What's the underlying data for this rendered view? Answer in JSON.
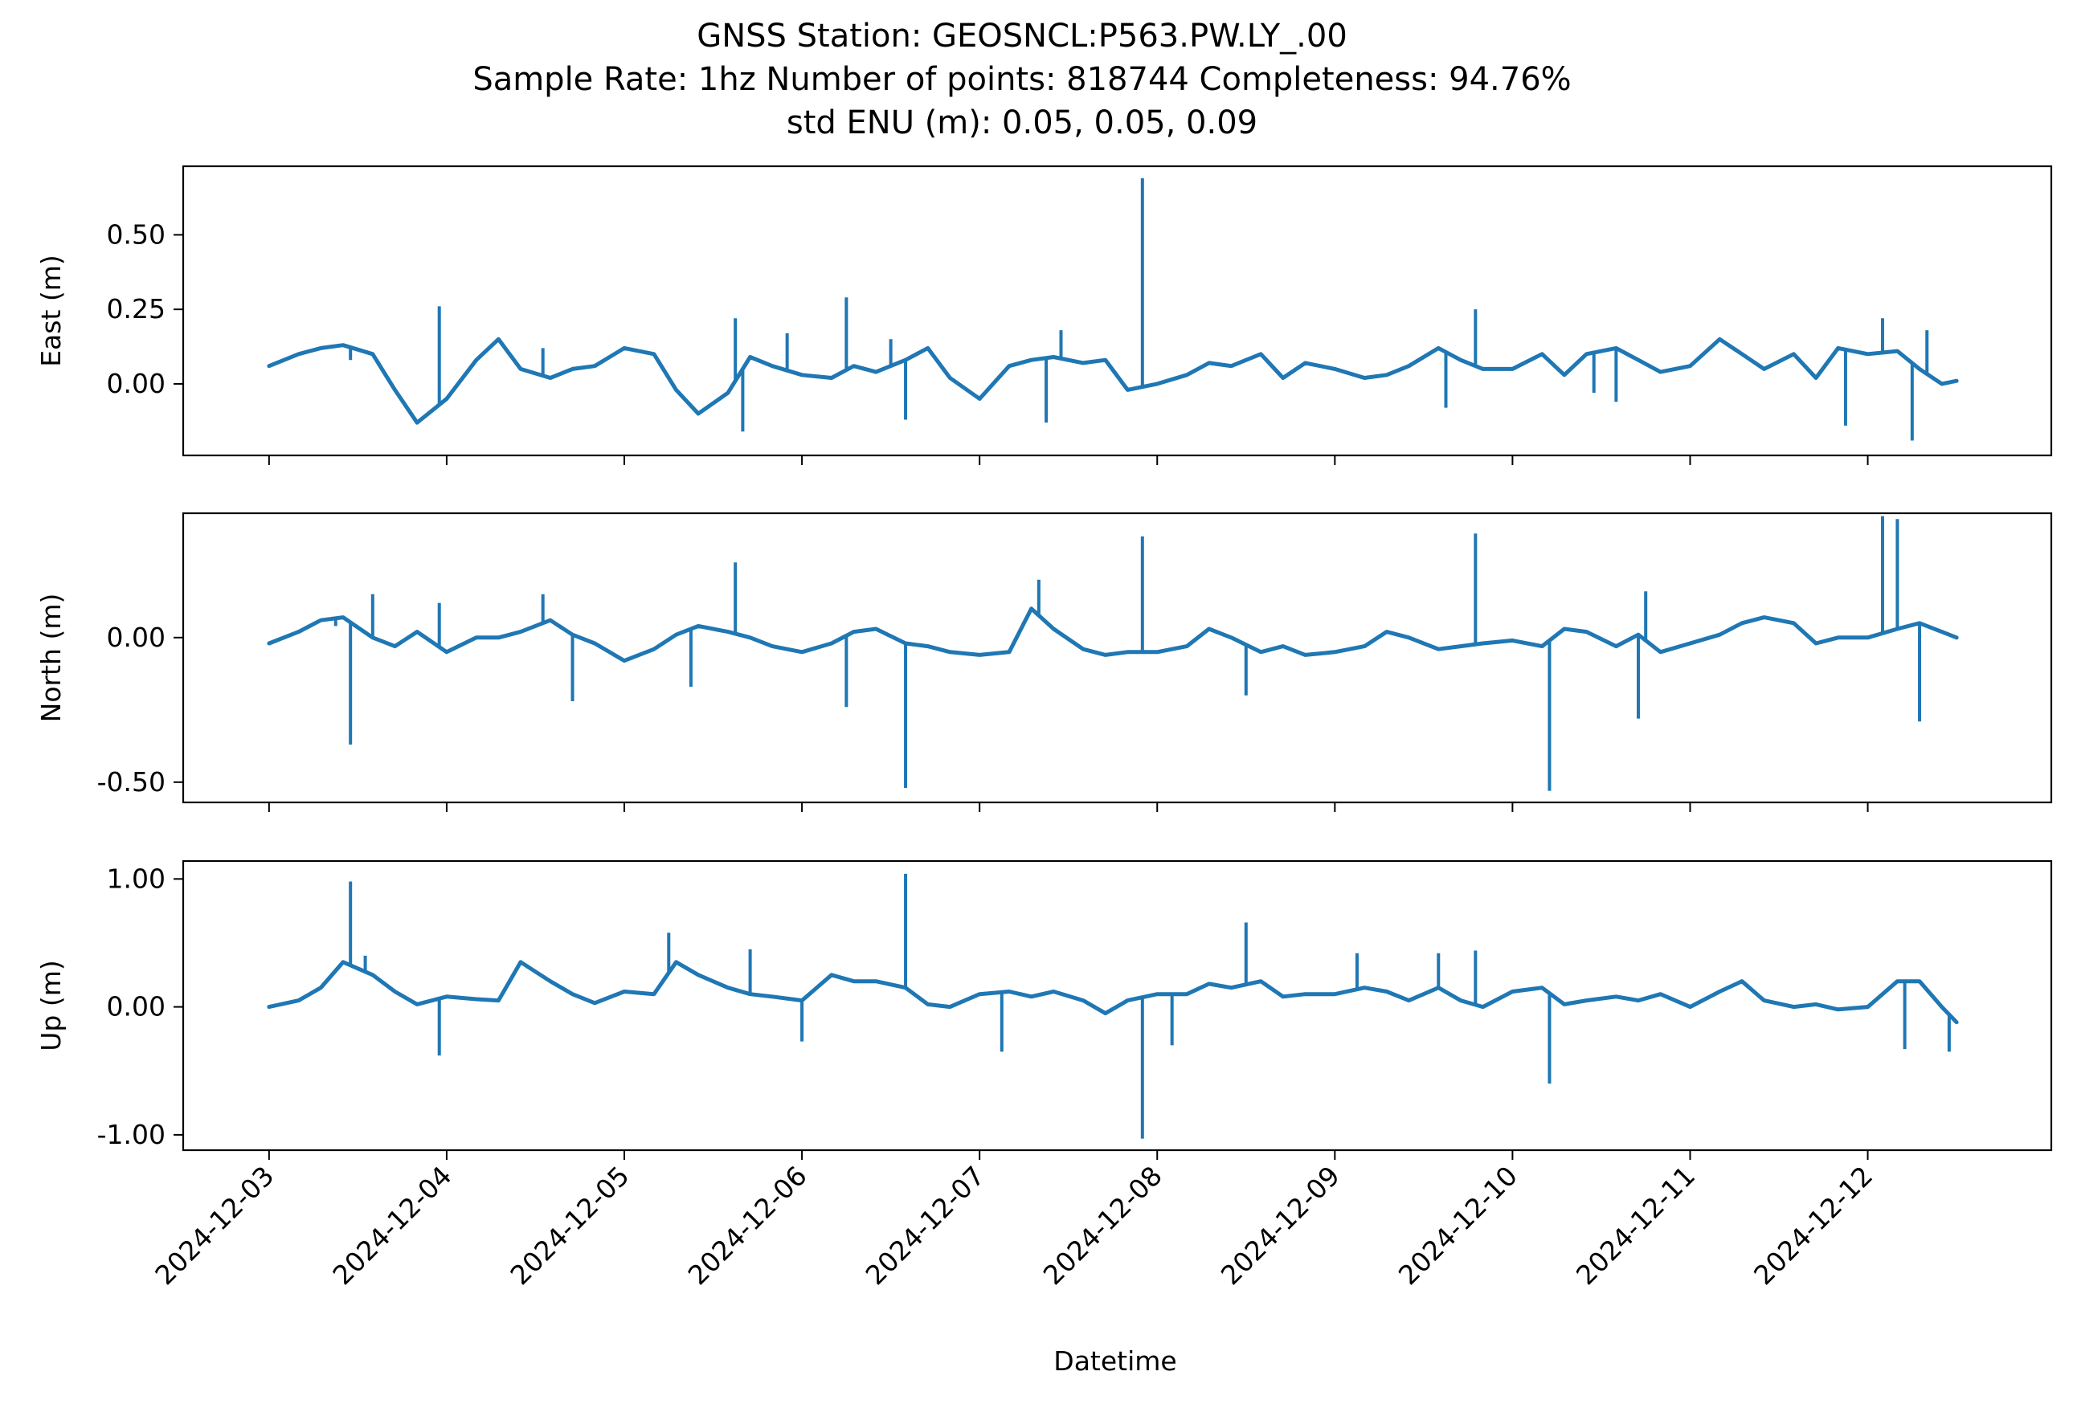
{
  "chart_data": {
    "type": "line",
    "title_lines": [
      "GNSS Station: GEOSNCL:P563.PW.LY_.00",
      "Sample Rate: 1hz   Number of points: 818744    Completeness:  94.76%",
      "std ENU (m):  0.05, 0.05, 0.09"
    ],
    "xlabel": "Datetime",
    "x_ticks": [
      "2024-12-03",
      "2024-12-04",
      "2024-12-05",
      "2024-12-06",
      "2024-12-07",
      "2024-12-08",
      "2024-12-09",
      "2024-12-10",
      "2024-12-11",
      "2024-12-12"
    ],
    "xlim": [
      "2024-12-02 12:24",
      "2024-12-13 00:48"
    ],
    "series_color": "#1f77b4",
    "grid": false,
    "panels": [
      {
        "name": "East",
        "ylabel": "East (m)",
        "ylim": [
          -0.24,
          0.73
        ],
        "yticks": [
          0.5,
          0.25,
          0.0
        ],
        "ytick_labels": [
          "0.50",
          "0.25",
          "0.00"
        ],
        "x": [
          "2024-12-03 00:00",
          "2024-12-03 04:00",
          "2024-12-03 07:00",
          "2024-12-03 10:00",
          "2024-12-03 14:00",
          "2024-12-03 17:00",
          "2024-12-03 20:00",
          "2024-12-04 00:00",
          "2024-12-04 04:00",
          "2024-12-04 07:00",
          "2024-12-04 10:00",
          "2024-12-04 14:00",
          "2024-12-04 17:00",
          "2024-12-04 20:00",
          "2024-12-05 00:00",
          "2024-12-05 04:00",
          "2024-12-05 07:00",
          "2024-12-05 10:00",
          "2024-12-05 14:00",
          "2024-12-05 17:00",
          "2024-12-05 20:00",
          "2024-12-06 00:00",
          "2024-12-06 04:00",
          "2024-12-06 07:00",
          "2024-12-06 10:00",
          "2024-12-06 14:00",
          "2024-12-06 17:00",
          "2024-12-06 20:00",
          "2024-12-07 00:00",
          "2024-12-07 04:00",
          "2024-12-07 07:00",
          "2024-12-07 10:00",
          "2024-12-07 14:00",
          "2024-12-07 17:00",
          "2024-12-07 20:00",
          "2024-12-08 00:00",
          "2024-12-08 04:00",
          "2024-12-08 07:00",
          "2024-12-08 10:00",
          "2024-12-08 14:00",
          "2024-12-08 17:00",
          "2024-12-08 20:00",
          "2024-12-09 00:00",
          "2024-12-09 04:00",
          "2024-12-09 07:00",
          "2024-12-09 10:00",
          "2024-12-09 14:00",
          "2024-12-09 17:00",
          "2024-12-09 20:00",
          "2024-12-10 00:00",
          "2024-12-10 04:00",
          "2024-12-10 07:00",
          "2024-12-10 10:00",
          "2024-12-10 14:00",
          "2024-12-10 17:00",
          "2024-12-10 20:00",
          "2024-12-11 00:00",
          "2024-12-11 04:00",
          "2024-12-11 07:00",
          "2024-12-11 10:00",
          "2024-12-11 14:00",
          "2024-12-11 17:00",
          "2024-12-11 20:00",
          "2024-12-12 00:00",
          "2024-12-12 04:00",
          "2024-12-12 07:00",
          "2024-12-12 10:00",
          "2024-12-12 12:00"
        ],
        "values": [
          0.06,
          0.1,
          0.12,
          0.13,
          0.1,
          -0.02,
          -0.13,
          -0.05,
          0.08,
          0.15,
          0.05,
          0.02,
          0.05,
          0.06,
          0.12,
          0.1,
          -0.02,
          -0.1,
          -0.03,
          0.09,
          0.06,
          0.03,
          0.02,
          0.06,
          0.04,
          0.08,
          0.12,
          0.02,
          -0.05,
          0.06,
          0.08,
          0.09,
          0.07,
          0.08,
          -0.02,
          0.0,
          0.03,
          0.07,
          0.06,
          0.1,
          0.02,
          0.07,
          0.05,
          0.02,
          0.03,
          0.06,
          0.12,
          0.08,
          0.05,
          0.05,
          0.1,
          0.03,
          0.1,
          0.12,
          0.08,
          0.04,
          0.06,
          0.15,
          0.1,
          0.05,
          0.1,
          0.02,
          0.12,
          0.1,
          0.11,
          0.05,
          0.0,
          0.01
        ],
        "spikes": [
          {
            "x": "2024-12-03 11:00",
            "y": 0.08
          },
          {
            "x": "2024-12-03 23:00",
            "y": 0.26
          },
          {
            "x": "2024-12-04 13:00",
            "y": 0.12
          },
          {
            "x": "2024-12-05 15:00",
            "y": 0.22
          },
          {
            "x": "2024-12-05 16:00",
            "y": -0.16
          },
          {
            "x": "2024-12-05 22:00",
            "y": 0.17
          },
          {
            "x": "2024-12-06 06:00",
            "y": 0.29
          },
          {
            "x": "2024-12-06 12:00",
            "y": 0.15
          },
          {
            "x": "2024-12-06 14:00",
            "y": -0.12
          },
          {
            "x": "2024-12-07 09:00",
            "y": -0.13
          },
          {
            "x": "2024-12-07 11:00",
            "y": 0.18
          },
          {
            "x": "2024-12-07 22:00",
            "y": 0.69
          },
          {
            "x": "2024-12-09 15:00",
            "y": -0.08
          },
          {
            "x": "2024-12-09 19:00",
            "y": 0.25
          },
          {
            "x": "2024-12-10 11:00",
            "y": -0.03
          },
          {
            "x": "2024-12-10 14:00",
            "y": -0.06
          },
          {
            "x": "2024-12-11 21:00",
            "y": -0.14
          },
          {
            "x": "2024-12-12 02:00",
            "y": 0.22
          },
          {
            "x": "2024-12-12 06:00",
            "y": -0.19
          },
          {
            "x": "2024-12-12 08:00",
            "y": 0.18
          }
        ]
      },
      {
        "name": "North",
        "ylabel": "North (m)",
        "ylim": [
          -0.57,
          0.43
        ],
        "yticks": [
          0.0,
          -0.5
        ],
        "ytick_labels": [
          "0.00",
          "-0.50"
        ],
        "x": [
          "2024-12-03 00:00",
          "2024-12-03 04:00",
          "2024-12-03 07:00",
          "2024-12-03 10:00",
          "2024-12-03 14:00",
          "2024-12-03 17:00",
          "2024-12-03 20:00",
          "2024-12-04 00:00",
          "2024-12-04 04:00",
          "2024-12-04 07:00",
          "2024-12-04 10:00",
          "2024-12-04 14:00",
          "2024-12-04 17:00",
          "2024-12-04 20:00",
          "2024-12-05 00:00",
          "2024-12-05 04:00",
          "2024-12-05 07:00",
          "2024-12-05 10:00",
          "2024-12-05 14:00",
          "2024-12-05 17:00",
          "2024-12-05 20:00",
          "2024-12-06 00:00",
          "2024-12-06 04:00",
          "2024-12-06 07:00",
          "2024-12-06 10:00",
          "2024-12-06 14:00",
          "2024-12-06 17:00",
          "2024-12-06 20:00",
          "2024-12-07 00:00",
          "2024-12-07 04:00",
          "2024-12-07 07:00",
          "2024-12-07 10:00",
          "2024-12-07 14:00",
          "2024-12-07 17:00",
          "2024-12-07 20:00",
          "2024-12-08 00:00",
          "2024-12-08 04:00",
          "2024-12-08 07:00",
          "2024-12-08 10:00",
          "2024-12-08 14:00",
          "2024-12-08 17:00",
          "2024-12-08 20:00",
          "2024-12-09 00:00",
          "2024-12-09 04:00",
          "2024-12-09 07:00",
          "2024-12-09 10:00",
          "2024-12-09 14:00",
          "2024-12-09 17:00",
          "2024-12-09 20:00",
          "2024-12-10 00:00",
          "2024-12-10 04:00",
          "2024-12-10 07:00",
          "2024-12-10 10:00",
          "2024-12-10 14:00",
          "2024-12-10 17:00",
          "2024-12-10 20:00",
          "2024-12-11 00:00",
          "2024-12-11 04:00",
          "2024-12-11 07:00",
          "2024-12-11 10:00",
          "2024-12-11 14:00",
          "2024-12-11 17:00",
          "2024-12-11 20:00",
          "2024-12-12 00:00",
          "2024-12-12 04:00",
          "2024-12-12 07:00",
          "2024-12-12 10:00",
          "2024-12-12 12:00"
        ],
        "values": [
          -0.02,
          0.02,
          0.06,
          0.07,
          0.0,
          -0.03,
          0.02,
          -0.05,
          0.0,
          0.0,
          0.02,
          0.06,
          0.01,
          -0.02,
          -0.08,
          -0.04,
          0.01,
          0.04,
          0.02,
          0.0,
          -0.03,
          -0.05,
          -0.02,
          0.02,
          0.03,
          -0.02,
          -0.03,
          -0.05,
          -0.06,
          -0.05,
          0.1,
          0.03,
          -0.04,
          -0.06,
          -0.05,
          -0.05,
          -0.03,
          0.03,
          0.0,
          -0.05,
          -0.03,
          -0.06,
          -0.05,
          -0.03,
          0.02,
          0.0,
          -0.04,
          -0.03,
          -0.02,
          -0.01,
          -0.03,
          0.03,
          0.02,
          -0.03,
          0.01,
          -0.05,
          -0.02,
          0.01,
          0.05,
          0.07,
          0.05,
          -0.02,
          0.0,
          0.0,
          0.03,
          0.05,
          0.02,
          0.0
        ],
        "spikes": [
          {
            "x": "2024-12-03 09:00",
            "y": 0.04
          },
          {
            "x": "2024-12-03 11:00",
            "y": -0.37
          },
          {
            "x": "2024-12-03 14:00",
            "y": 0.15
          },
          {
            "x": "2024-12-03 23:00",
            "y": 0.12
          },
          {
            "x": "2024-12-04 13:00",
            "y": 0.15
          },
          {
            "x": "2024-12-04 17:00",
            "y": -0.22
          },
          {
            "x": "2024-12-05 09:00",
            "y": -0.17
          },
          {
            "x": "2024-12-05 15:00",
            "y": 0.26
          },
          {
            "x": "2024-12-06 06:00",
            "y": -0.24
          },
          {
            "x": "2024-12-06 14:00",
            "y": -0.52
          },
          {
            "x": "2024-12-07 08:00",
            "y": 0.2
          },
          {
            "x": "2024-12-07 22:00",
            "y": 0.35
          },
          {
            "x": "2024-12-08 12:00",
            "y": -0.2
          },
          {
            "x": "2024-12-09 19:00",
            "y": 0.36
          },
          {
            "x": "2024-12-10 05:00",
            "y": -0.53
          },
          {
            "x": "2024-12-10 17:00",
            "y": -0.28
          },
          {
            "x": "2024-12-10 18:00",
            "y": 0.16
          },
          {
            "x": "2024-12-12 02:00",
            "y": 0.42
          },
          {
            "x": "2024-12-12 04:00",
            "y": 0.41
          },
          {
            "x": "2024-12-12 07:00",
            "y": -0.29
          }
        ]
      },
      {
        "name": "Up",
        "ylabel": "Up (m)",
        "ylim": [
          -1.12,
          1.14
        ],
        "yticks": [
          1.0,
          0.0,
          -1.0
        ],
        "ytick_labels": [
          "1.00",
          "0.00",
          "-1.00"
        ],
        "x": [
          "2024-12-03 00:00",
          "2024-12-03 04:00",
          "2024-12-03 07:00",
          "2024-12-03 10:00",
          "2024-12-03 14:00",
          "2024-12-03 17:00",
          "2024-12-03 20:00",
          "2024-12-04 00:00",
          "2024-12-04 04:00",
          "2024-12-04 07:00",
          "2024-12-04 10:00",
          "2024-12-04 14:00",
          "2024-12-04 17:00",
          "2024-12-04 20:00",
          "2024-12-05 00:00",
          "2024-12-05 04:00",
          "2024-12-05 07:00",
          "2024-12-05 10:00",
          "2024-12-05 14:00",
          "2024-12-05 17:00",
          "2024-12-05 20:00",
          "2024-12-06 00:00",
          "2024-12-06 04:00",
          "2024-12-06 07:00",
          "2024-12-06 10:00",
          "2024-12-06 14:00",
          "2024-12-06 17:00",
          "2024-12-06 20:00",
          "2024-12-07 00:00",
          "2024-12-07 04:00",
          "2024-12-07 07:00",
          "2024-12-07 10:00",
          "2024-12-07 14:00",
          "2024-12-07 17:00",
          "2024-12-07 20:00",
          "2024-12-08 00:00",
          "2024-12-08 04:00",
          "2024-12-08 07:00",
          "2024-12-08 10:00",
          "2024-12-08 14:00",
          "2024-12-08 17:00",
          "2024-12-08 20:00",
          "2024-12-09 00:00",
          "2024-12-09 04:00",
          "2024-12-09 07:00",
          "2024-12-09 10:00",
          "2024-12-09 14:00",
          "2024-12-09 17:00",
          "2024-12-09 20:00",
          "2024-12-10 00:00",
          "2024-12-10 04:00",
          "2024-12-10 07:00",
          "2024-12-10 10:00",
          "2024-12-10 14:00",
          "2024-12-10 17:00",
          "2024-12-10 20:00",
          "2024-12-11 00:00",
          "2024-12-11 04:00",
          "2024-12-11 07:00",
          "2024-12-11 10:00",
          "2024-12-11 14:00",
          "2024-12-11 17:00",
          "2024-12-11 20:00",
          "2024-12-12 00:00",
          "2024-12-12 04:00",
          "2024-12-12 07:00",
          "2024-12-12 10:00",
          "2024-12-12 12:00"
        ],
        "values": [
          0.0,
          0.05,
          0.15,
          0.35,
          0.25,
          0.12,
          0.02,
          0.08,
          0.06,
          0.05,
          0.35,
          0.2,
          0.1,
          0.03,
          0.12,
          0.1,
          0.35,
          0.25,
          0.15,
          0.1,
          0.08,
          0.05,
          0.25,
          0.2,
          0.2,
          0.15,
          0.02,
          0.0,
          0.1,
          0.12,
          0.08,
          0.12,
          0.05,
          -0.05,
          0.05,
          0.1,
          0.1,
          0.18,
          0.15,
          0.2,
          0.08,
          0.1,
          0.1,
          0.15,
          0.12,
          0.05,
          0.15,
          0.05,
          0.0,
          0.12,
          0.15,
          0.02,
          0.05,
          0.08,
          0.05,
          0.1,
          0.0,
          0.12,
          0.2,
          0.05,
          0.0,
          0.02,
          -0.02,
          0.0,
          0.2,
          0.2,
          0.0,
          -0.12
        ],
        "spikes": [
          {
            "x": "2024-12-03 11:00",
            "y": 0.98
          },
          {
            "x": "2024-12-03 13:00",
            "y": 0.4
          },
          {
            "x": "2024-12-03 23:00",
            "y": -0.38
          },
          {
            "x": "2024-12-04 11:00",
            "y": 0.3
          },
          {
            "x": "2024-12-05 06:00",
            "y": 0.58
          },
          {
            "x": "2024-12-05 17:00",
            "y": 0.45
          },
          {
            "x": "2024-12-06 00:00",
            "y": -0.27
          },
          {
            "x": "2024-12-06 14:00",
            "y": 1.04
          },
          {
            "x": "2024-12-07 03:00",
            "y": -0.35
          },
          {
            "x": "2024-12-07 22:00",
            "y": -1.03
          },
          {
            "x": "2024-12-08 02:00",
            "y": -0.3
          },
          {
            "x": "2024-12-08 12:00",
            "y": 0.66
          },
          {
            "x": "2024-12-09 03:00",
            "y": 0.42
          },
          {
            "x": "2024-12-09 14:00",
            "y": 0.42
          },
          {
            "x": "2024-12-09 19:00",
            "y": 0.44
          },
          {
            "x": "2024-12-10 05:00",
            "y": -0.6
          },
          {
            "x": "2024-12-12 05:00",
            "y": -0.33
          },
          {
            "x": "2024-12-12 11:00",
            "y": -0.35
          }
        ]
      }
    ]
  }
}
